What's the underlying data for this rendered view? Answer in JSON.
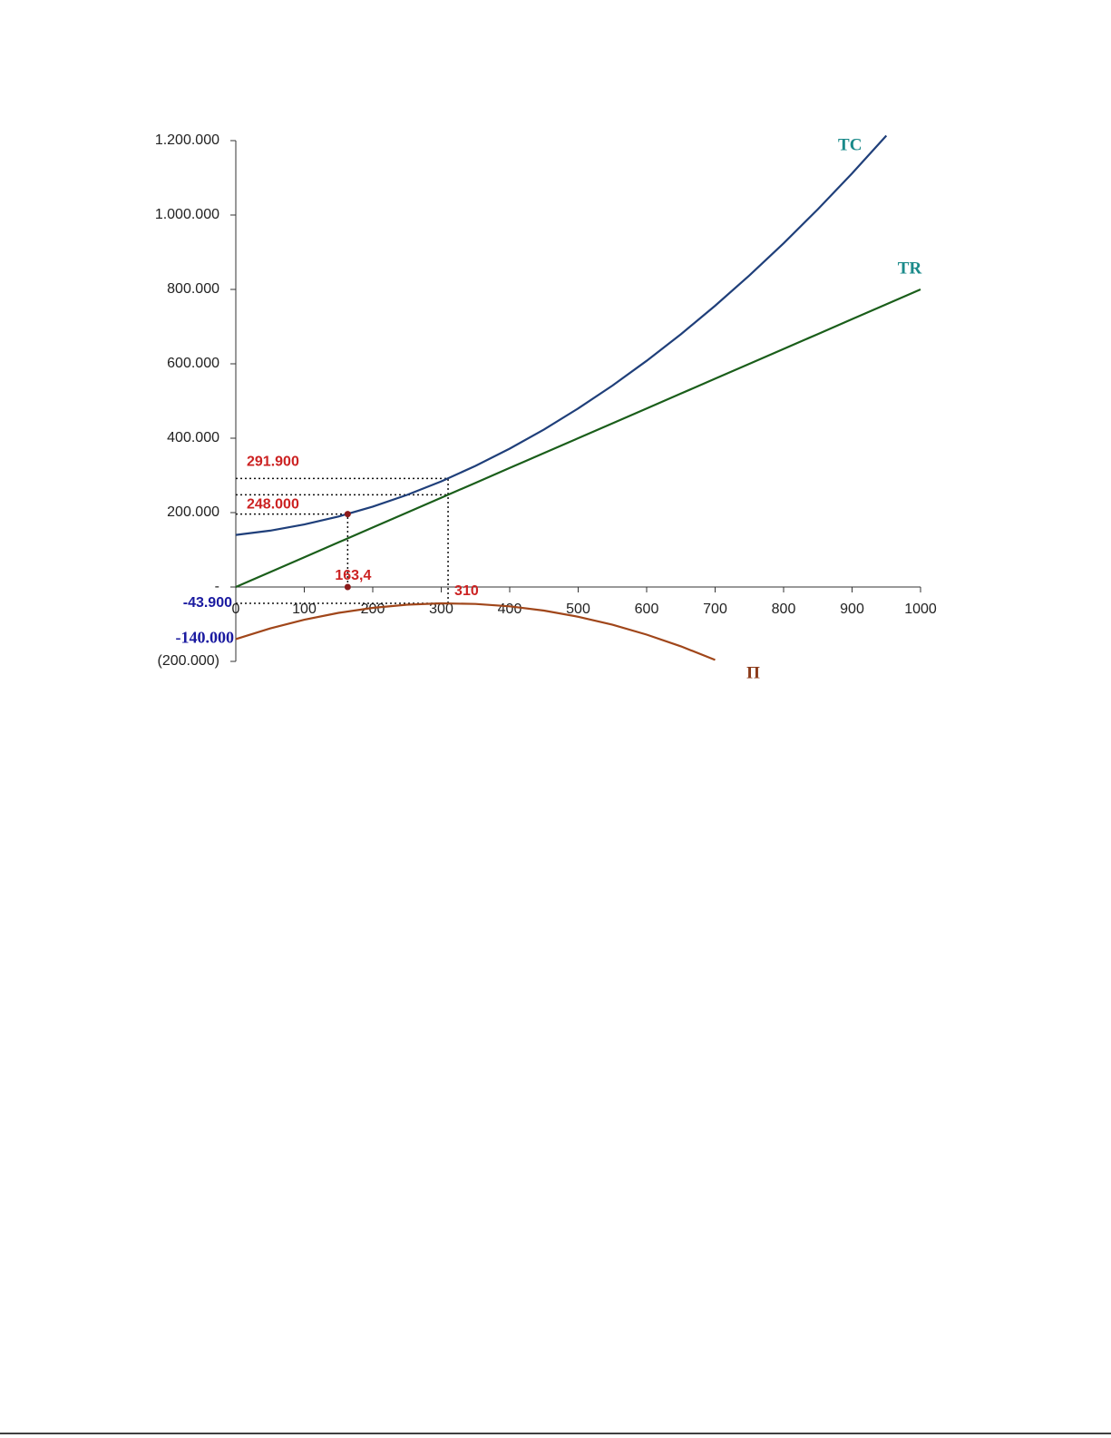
{
  "chart_data": {
    "type": "line",
    "x": [
      0,
      50,
      100,
      150,
      200,
      250,
      300,
      350,
      400,
      450,
      500,
      550,
      600,
      650,
      700,
      750,
      800,
      850,
      900,
      950,
      1000
    ],
    "series": [
      {
        "name": "TC",
        "color": "#1f3f7a",
        "label_color": "#1a8a8a",
        "values": [
          140000,
          151500,
          168000,
          189500,
          216000,
          247500,
          284000,
          325500,
          372000,
          423500,
          480000,
          541500,
          608000,
          679500,
          756000,
          837500,
          924000,
          1015500,
          1112000,
          1213500,
          null
        ]
      },
      {
        "name": "TR",
        "color": "#1a5e1a",
        "label_color": "#1a8a8a",
        "values": [
          0,
          40000,
          80000,
          120000,
          160000,
          200000,
          240000,
          280000,
          320000,
          360000,
          400000,
          440000,
          480000,
          520000,
          560000,
          600000,
          640000,
          680000,
          720000,
          760000,
          800000
        ]
      },
      {
        "name": "Π",
        "color": "#a0461a",
        "label_color": "#8b3a1a",
        "values": [
          -140000,
          -111500,
          -88000,
          -69500,
          -56000,
          -47500,
          -44000,
          -45500,
          -52000,
          -63500,
          -80000,
          -101500,
          -128000,
          -159500,
          -196000,
          null,
          null,
          null,
          null,
          null,
          null
        ]
      }
    ],
    "xlim": [
      0,
      1000
    ],
    "xticks": [
      0,
      100,
      200,
      300,
      400,
      500,
      600,
      700,
      800,
      900,
      1000
    ],
    "ylim": [
      -200000,
      1200000
    ],
    "yticks": [
      {
        "value": -200000,
        "label": "(200.000)"
      },
      {
        "value": 0,
        "label": "-"
      },
      {
        "value": 200000,
        "label": "200.000"
      },
      {
        "value": 400000,
        "label": "400.000"
      },
      {
        "value": 600000,
        "label": "600.000"
      },
      {
        "value": 800000,
        "label": "800.000"
      },
      {
        "value": 1000000,
        "label": "1.000.000"
      },
      {
        "value": 1200000,
        "label": "1.200.000"
      }
    ],
    "annotations": [
      {
        "text": "291.900",
        "value": 291900,
        "axis": "y",
        "color": "#cc2222"
      },
      {
        "text": "248.000",
        "value": 248000,
        "axis": "y",
        "color": "#cc2222"
      },
      {
        "text": "-43.900",
        "value": -43900,
        "axis": "y",
        "color": "#1a1aa0"
      },
      {
        "text": "-140.000",
        "value": -140000,
        "axis": "y",
        "color": "#1a1aa0"
      },
      {
        "text": "163,4",
        "value": 163.4,
        "axis": "x",
        "color": "#cc2222"
      },
      {
        "text": "310",
        "value": 310,
        "axis": "x",
        "color": "#cc2222"
      }
    ],
    "markers": {
      "x": [
        163.4,
        163.4
      ],
      "y": [
        196100,
        0
      ],
      "color": "#8b1a1a"
    }
  }
}
